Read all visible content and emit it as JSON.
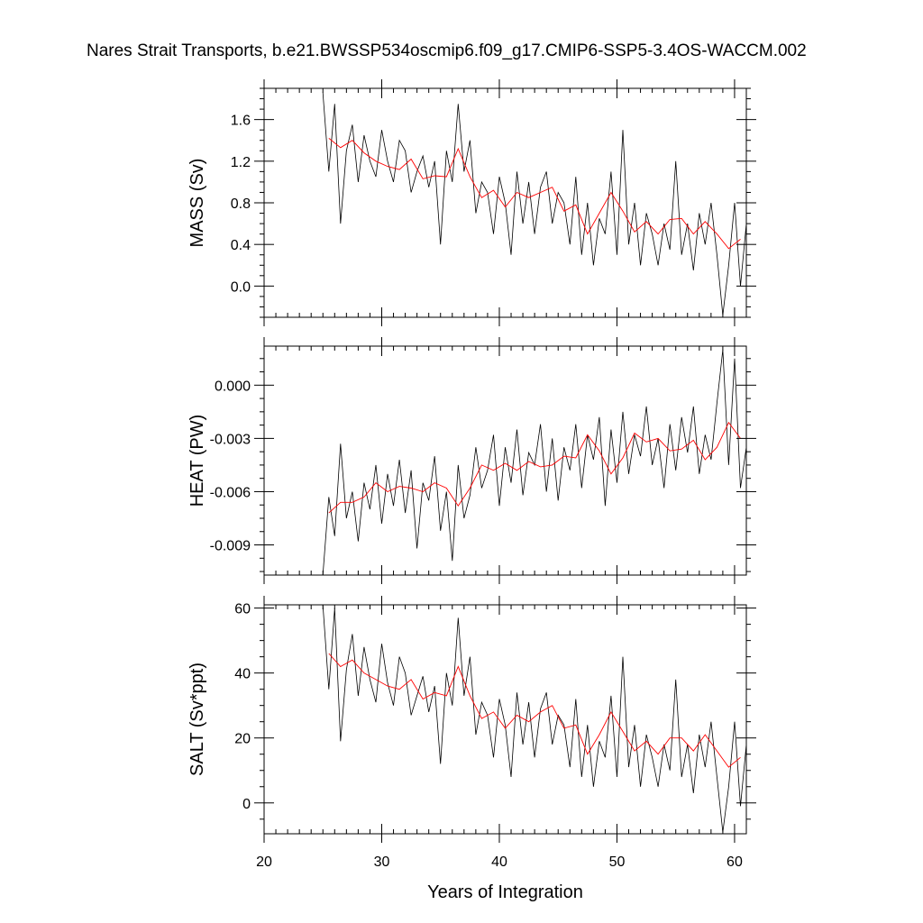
{
  "title": "Nares Strait Transports, b.e21.BWSSP534oscmip6.f09_g17.CMIP6-SSP5-3.4OS-WACCM.002",
  "xlabel": "Years of Integration",
  "colors": {
    "raw_series": "#000000",
    "smoothed_series": "#ff0000",
    "frame": "#000000"
  },
  "chart_data": [
    {
      "type": "line",
      "panel": "top",
      "title": "",
      "xlabel": "Years of Integration",
      "ylabel": "MASS (Sv)",
      "xlim": [
        20,
        61
      ],
      "ylim": [
        -0.3,
        1.9
      ],
      "x_ticks": [
        20,
        30,
        40,
        50,
        60
      ],
      "y_ticks": [
        0.0,
        0.4,
        0.8,
        1.2,
        1.6
      ],
      "y_tick_labels": [
        "0.0",
        "0.4",
        "0.8",
        "1.2",
        "1.6"
      ],
      "grid": false,
      "series": [
        {
          "x": [
            25.0,
            25.5,
            26.0,
            26.5,
            27.0,
            27.5,
            28.0,
            28.5,
            29.0,
            29.5,
            30.0,
            30.5,
            31.0,
            31.5,
            32.0,
            32.5,
            33.0,
            33.5,
            34.0,
            34.5,
            35.0,
            35.5,
            36.0,
            36.5,
            37.0,
            37.5,
            38.0,
            38.5,
            39.0,
            39.5,
            40.0,
            40.5,
            41.0,
            41.5,
            42.0,
            42.5,
            43.0,
            43.5,
            44.0,
            44.5,
            45.0,
            45.5,
            46.0,
            46.5,
            47.0,
            47.5,
            48.0,
            48.5,
            49.0,
            49.5,
            50.0,
            50.5,
            51.0,
            51.5,
            52.0,
            52.5,
            53.0,
            53.5,
            54.0,
            54.5,
            55.0,
            55.5,
            56.0,
            56.5,
            57.0,
            57.5,
            58.0,
            58.5,
            59.0,
            59.5,
            60.0,
            60.5,
            61.0
          ],
          "values": [
            1.86,
            1.1,
            1.75,
            0.6,
            1.3,
            1.55,
            1.0,
            1.45,
            1.2,
            1.05,
            1.5,
            1.2,
            1.0,
            1.4,
            1.3,
            0.9,
            1.1,
            1.25,
            0.95,
            1.2,
            0.4,
            1.3,
            1.0,
            1.75,
            1.1,
            1.4,
            0.7,
            1.0,
            0.9,
            0.5,
            1.05,
            0.8,
            0.3,
            1.1,
            0.6,
            1.0,
            0.5,
            0.95,
            1.1,
            0.6,
            0.9,
            0.8,
            0.4,
            1.05,
            0.3,
            0.8,
            0.2,
            0.65,
            0.5,
            1.1,
            0.3,
            1.5,
            0.4,
            0.8,
            0.2,
            0.7,
            0.5,
            0.2,
            0.6,
            0.35,
            1.2,
            0.3,
            0.6,
            0.15,
            0.7,
            0.4,
            0.8,
            0.3,
            -0.28,
            0.2,
            0.8,
            0.0,
            0.6
          ]
        },
        {
          "x": [
            25.5,
            26.5,
            27.5,
            28.5,
            29.5,
            30.5,
            31.5,
            32.5,
            33.5,
            34.5,
            35.5,
            36.5,
            37.5,
            38.5,
            39.5,
            40.5,
            41.5,
            42.5,
            43.5,
            44.5,
            45.5,
            46.5,
            47.5,
            48.5,
            49.5,
            50.5,
            51.5,
            52.5,
            53.5,
            54.5,
            55.5,
            56.5,
            57.5,
            58.5,
            59.5,
            60.5
          ],
          "values": [
            1.42,
            1.33,
            1.4,
            1.28,
            1.2,
            1.15,
            1.12,
            1.22,
            1.03,
            1.06,
            1.05,
            1.32,
            1.05,
            0.85,
            0.92,
            0.76,
            0.9,
            0.85,
            0.9,
            0.95,
            0.72,
            0.78,
            0.5,
            0.7,
            0.9,
            0.72,
            0.52,
            0.62,
            0.5,
            0.64,
            0.65,
            0.5,
            0.62,
            0.5,
            0.36,
            0.45
          ]
        }
      ]
    },
    {
      "type": "line",
      "panel": "middle",
      "title": "",
      "xlabel": "Years of Integration",
      "ylabel": "HEAT (PW)",
      "xlim": [
        20,
        61
      ],
      "ylim": [
        -0.0107,
        0.0022
      ],
      "x_ticks": [
        20,
        30,
        40,
        50,
        60
      ],
      "y_ticks": [
        -0.009,
        -0.006,
        -0.003,
        0.0
      ],
      "y_tick_labels": [
        "-0.009",
        "-0.006",
        "-0.003",
        "0.000"
      ],
      "grid": false,
      "series": [
        {
          "x": [
            25.0,
            25.5,
            26.0,
            26.5,
            27.0,
            27.5,
            28.0,
            28.5,
            29.0,
            29.5,
            30.0,
            30.5,
            31.0,
            31.5,
            32.0,
            32.5,
            33.0,
            33.5,
            34.0,
            34.5,
            35.0,
            35.5,
            36.0,
            36.5,
            37.0,
            37.5,
            38.0,
            38.5,
            39.0,
            39.5,
            40.0,
            40.5,
            41.0,
            41.5,
            42.0,
            42.5,
            43.0,
            43.5,
            44.0,
            44.5,
            45.0,
            45.5,
            46.0,
            46.5,
            47.0,
            47.5,
            48.0,
            48.5,
            49.0,
            49.5,
            50.0,
            50.5,
            51.0,
            51.5,
            52.0,
            52.5,
            53.0,
            53.5,
            54.0,
            54.5,
            55.0,
            55.5,
            56.0,
            56.5,
            57.0,
            57.5,
            58.0,
            58.5,
            59.0,
            59.5,
            60.0,
            60.5,
            61.0
          ],
          "values": [
            -0.0107,
            -0.0063,
            -0.0085,
            -0.0033,
            -0.0075,
            -0.006,
            -0.0088,
            -0.0055,
            -0.007,
            -0.0045,
            -0.0078,
            -0.005,
            -0.0068,
            -0.0042,
            -0.0072,
            -0.0048,
            -0.0092,
            -0.0055,
            -0.0065,
            -0.004,
            -0.0082,
            -0.006,
            -0.0099,
            -0.0045,
            -0.0075,
            -0.0062,
            -0.0035,
            -0.0058,
            -0.0048,
            -0.0028,
            -0.0068,
            -0.0035,
            -0.0055,
            -0.0025,
            -0.0062,
            -0.0038,
            -0.0045,
            -0.0022,
            -0.006,
            -0.003,
            -0.0065,
            -0.0035,
            -0.0048,
            -0.0022,
            -0.0058,
            -0.0028,
            -0.0042,
            -0.0018,
            -0.0068,
            -0.0025,
            -0.0055,
            -0.0015,
            -0.005,
            -0.0028,
            -0.004,
            -0.0012,
            -0.0045,
            -0.003,
            -0.0058,
            -0.0022,
            -0.0048,
            -0.0018,
            -0.0038,
            -0.0012,
            -0.005,
            -0.0028,
            -0.0042,
            -0.001,
            0.002,
            -0.0045,
            0.0015,
            -0.0058,
            -0.0035
          ]
        },
        {
          "x": [
            25.5,
            26.5,
            27.5,
            28.5,
            29.5,
            30.5,
            31.5,
            32.5,
            33.5,
            34.5,
            35.5,
            36.5,
            37.5,
            38.5,
            39.5,
            40.5,
            41.5,
            42.5,
            43.5,
            44.5,
            45.5,
            46.5,
            47.5,
            48.5,
            49.5,
            50.5,
            51.5,
            52.5,
            53.5,
            54.5,
            55.5,
            56.5,
            57.5,
            58.5,
            59.5,
            60.5
          ],
          "values": [
            -0.0072,
            -0.0066,
            -0.0066,
            -0.0063,
            -0.0055,
            -0.006,
            -0.0057,
            -0.0058,
            -0.006,
            -0.0055,
            -0.0058,
            -0.0068,
            -0.0058,
            -0.0045,
            -0.0048,
            -0.0044,
            -0.0048,
            -0.0043,
            -0.0046,
            -0.0045,
            -0.004,
            -0.0041,
            -0.0028,
            -0.0037,
            -0.005,
            -0.0041,
            -0.0027,
            -0.0032,
            -0.003,
            -0.0037,
            -0.0036,
            -0.0031,
            -0.0042,
            -0.0035,
            -0.0021,
            -0.003
          ]
        }
      ]
    },
    {
      "type": "line",
      "panel": "bottom",
      "title": "",
      "xlabel": "Years of Integration",
      "ylabel": "SALT (Sv*ppt)",
      "xlim": [
        20,
        61
      ],
      "ylim": [
        -9.5,
        61
      ],
      "x_ticks": [
        20,
        30,
        40,
        50,
        60
      ],
      "y_ticks": [
        0,
        20,
        40,
        60
      ],
      "y_tick_labels": [
        "0",
        "20",
        "40",
        "60"
      ],
      "grid": false,
      "series": [
        {
          "x": [
            25.0,
            25.5,
            26.0,
            26.5,
            27.0,
            27.5,
            28.0,
            28.5,
            29.0,
            29.5,
            30.0,
            30.5,
            31.0,
            31.5,
            32.0,
            32.5,
            33.0,
            33.5,
            34.0,
            34.5,
            35.0,
            35.5,
            36.0,
            36.5,
            37.0,
            37.5,
            38.0,
            38.5,
            39.0,
            39.5,
            40.0,
            40.5,
            41.0,
            41.5,
            42.0,
            42.5,
            43.0,
            43.5,
            44.0,
            44.5,
            45.0,
            45.5,
            46.0,
            46.5,
            47.0,
            47.5,
            48.0,
            48.5,
            49.0,
            49.5,
            50.0,
            50.5,
            51.0,
            51.5,
            52.0,
            52.5,
            53.0,
            53.5,
            54.0,
            54.5,
            55.0,
            55.5,
            56.0,
            56.5,
            57.0,
            57.5,
            58.0,
            58.5,
            59.0,
            59.5,
            60.0,
            60.5,
            61.0
          ],
          "values": [
            61,
            35,
            60,
            19,
            41,
            52,
            33,
            48,
            38,
            31,
            49,
            37,
            30,
            45,
            40,
            27,
            33,
            39,
            28,
            36,
            12,
            40,
            30,
            57,
            33,
            45,
            21,
            31,
            27,
            14,
            32,
            24,
            8,
            34,
            18,
            31,
            14,
            29,
            34,
            18,
            27,
            24,
            11,
            32,
            8,
            24,
            5,
            19,
            14,
            33,
            8,
            45,
            11,
            24,
            5,
            21,
            14,
            5,
            18,
            10,
            38,
            8,
            18,
            3,
            21,
            11,
            25,
            8,
            -9,
            5,
            25,
            -1,
            18
          ]
        },
        {
          "x": [
            25.5,
            26.5,
            27.5,
            28.5,
            29.5,
            30.5,
            31.5,
            32.5,
            33.5,
            34.5,
            35.5,
            36.5,
            37.5,
            38.5,
            39.5,
            40.5,
            41.5,
            42.5,
            43.5,
            44.5,
            45.5,
            46.5,
            47.5,
            48.5,
            49.5,
            50.5,
            51.5,
            52.5,
            53.5,
            54.5,
            55.5,
            56.5,
            57.5,
            58.5,
            59.5,
            60.5
          ],
          "values": [
            46,
            42,
            44,
            40,
            38,
            36,
            35,
            38,
            32,
            34,
            33,
            42,
            33,
            26,
            28,
            23,
            27,
            25,
            28,
            30,
            23,
            24,
            15,
            21,
            28,
            22,
            16,
            19,
            15,
            20,
            20,
            16,
            21,
            16,
            11,
            14
          ]
        }
      ]
    }
  ]
}
